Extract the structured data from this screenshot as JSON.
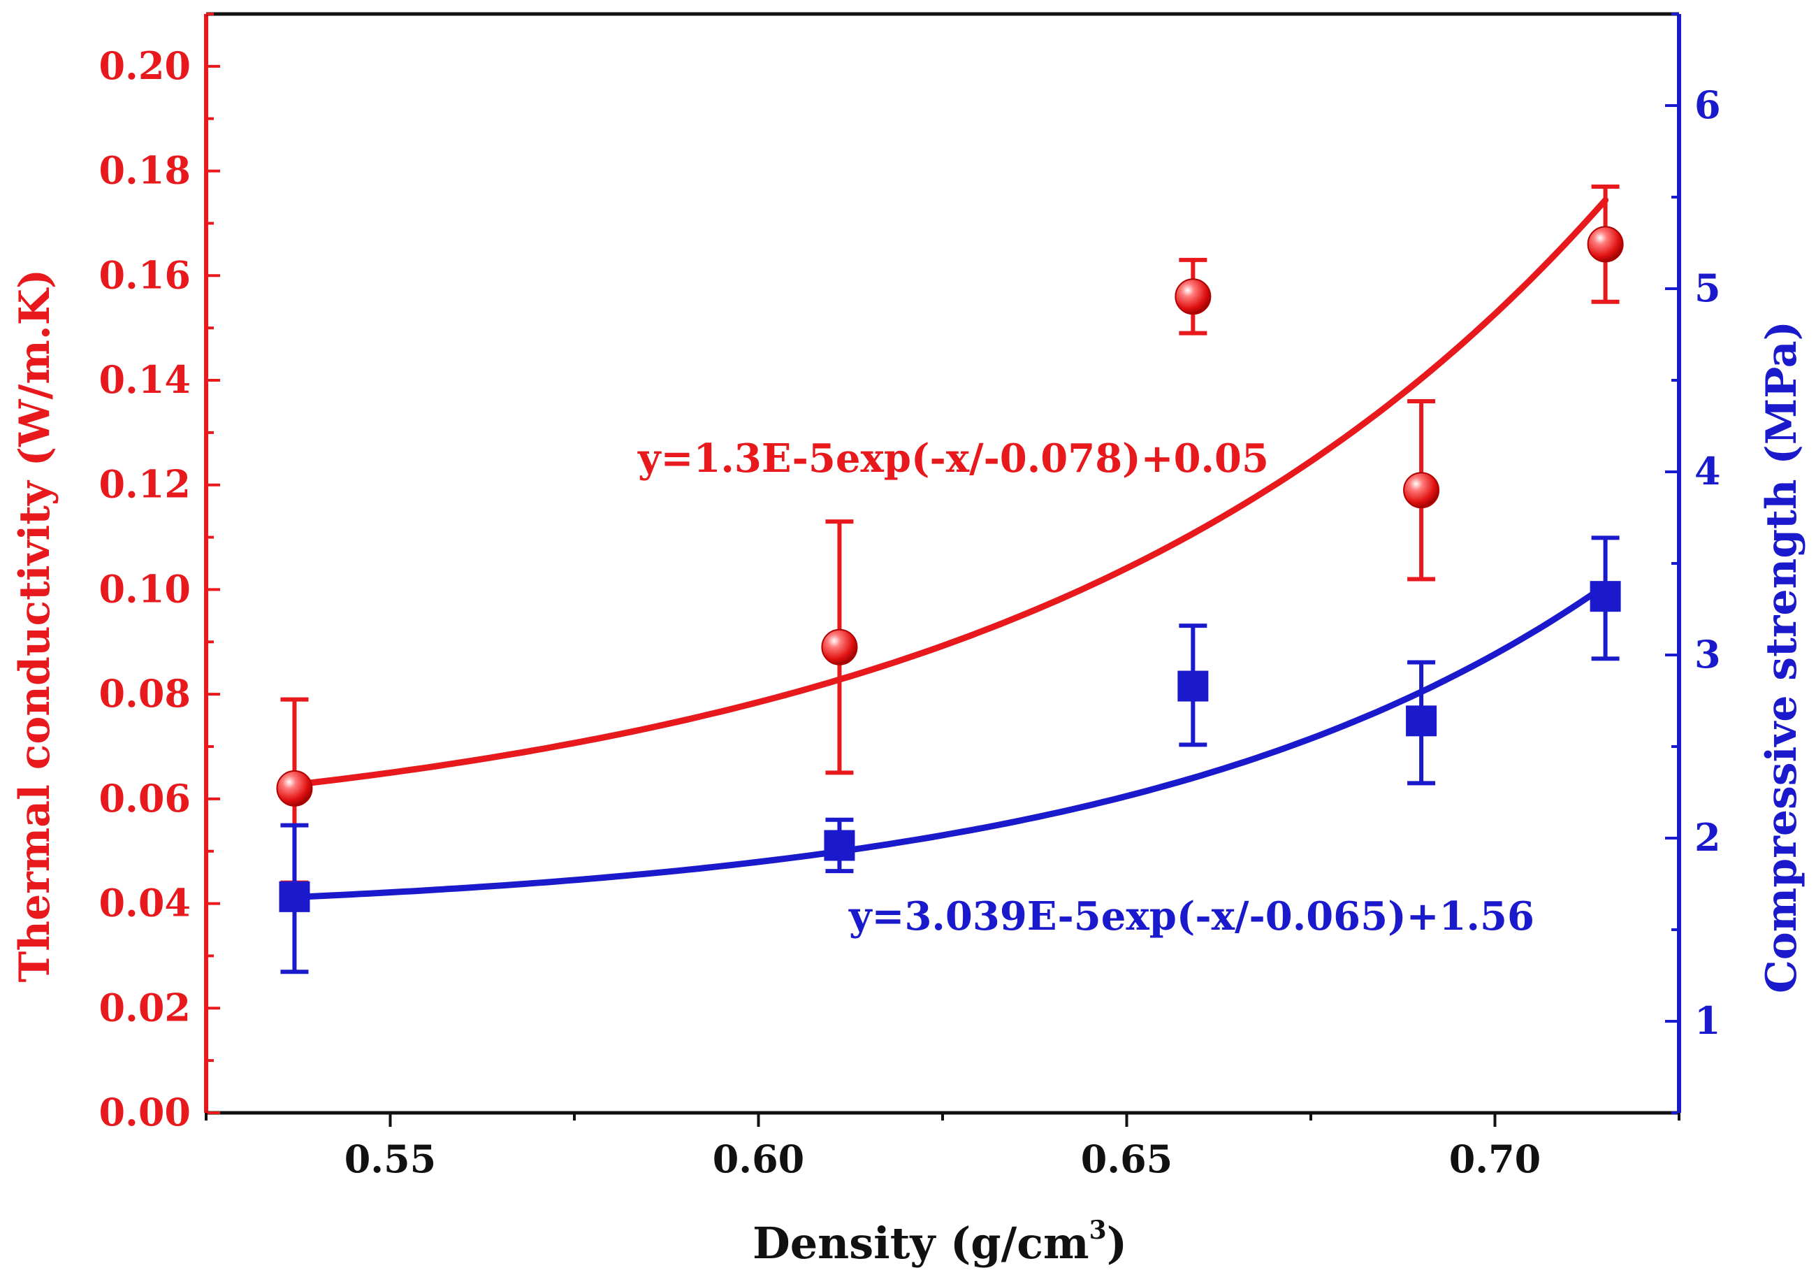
{
  "chart_data": {
    "type": "scatter",
    "title": "",
    "xlabel": {
      "main": "Density (g/cm",
      "sup": "3",
      "close": ")"
    },
    "ylabel_left": "Thermal conductivity (W/m.K)",
    "ylabel_right": "Compressive strength (MPa)",
    "xlim": [
      0.525,
      0.725
    ],
    "ylim_left": [
      0.0,
      0.21
    ],
    "ylim_right": [
      0.5,
      6.5
    ],
    "x_ticks": [
      "0.55",
      "0.60",
      "0.65",
      "0.70"
    ],
    "y_ticks_left": [
      "0.00",
      "0.02",
      "0.04",
      "0.06",
      "0.08",
      "0.10",
      "0.12",
      "0.14",
      "0.16",
      "0.18",
      "0.20"
    ],
    "y_ticks_right": [
      "1",
      "2",
      "3",
      "4",
      "5",
      "6"
    ],
    "series": [
      {
        "name": "Thermal conductivity",
        "axis": "left",
        "marker": "circle",
        "color": "#e8191c",
        "x": [
          0.537,
          0.611,
          0.659,
          0.69,
          0.715
        ],
        "y": [
          0.062,
          0.089,
          0.156,
          0.119,
          0.166
        ],
        "err_low": [
          0.044,
          0.065,
          0.149,
          0.102,
          0.155
        ],
        "err_high": [
          0.079,
          0.113,
          0.163,
          0.136,
          0.177
        ],
        "fit": {
          "a": 1.3e-05,
          "t": 0.078,
          "c": 0.05
        },
        "equation": "y=1.3E-5exp(-x/-0.078)+0.05"
      },
      {
        "name": "Compressive strength",
        "axis": "right",
        "marker": "square",
        "color": "#1a1acc",
        "x": [
          0.537,
          0.611,
          0.659,
          0.69,
          0.715
        ],
        "y": [
          1.68,
          1.96,
          2.83,
          2.64,
          3.32
        ],
        "err_low": [
          1.27,
          1.82,
          2.51,
          2.3,
          2.98
        ],
        "err_high": [
          2.07,
          2.1,
          3.16,
          2.96,
          3.64
        ],
        "fit": {
          "a": 3.039e-05,
          "t": 0.065,
          "c": 1.56
        },
        "equation": "y=3.039E-5exp(-x/-0.065)+1.56"
      }
    ]
  }
}
